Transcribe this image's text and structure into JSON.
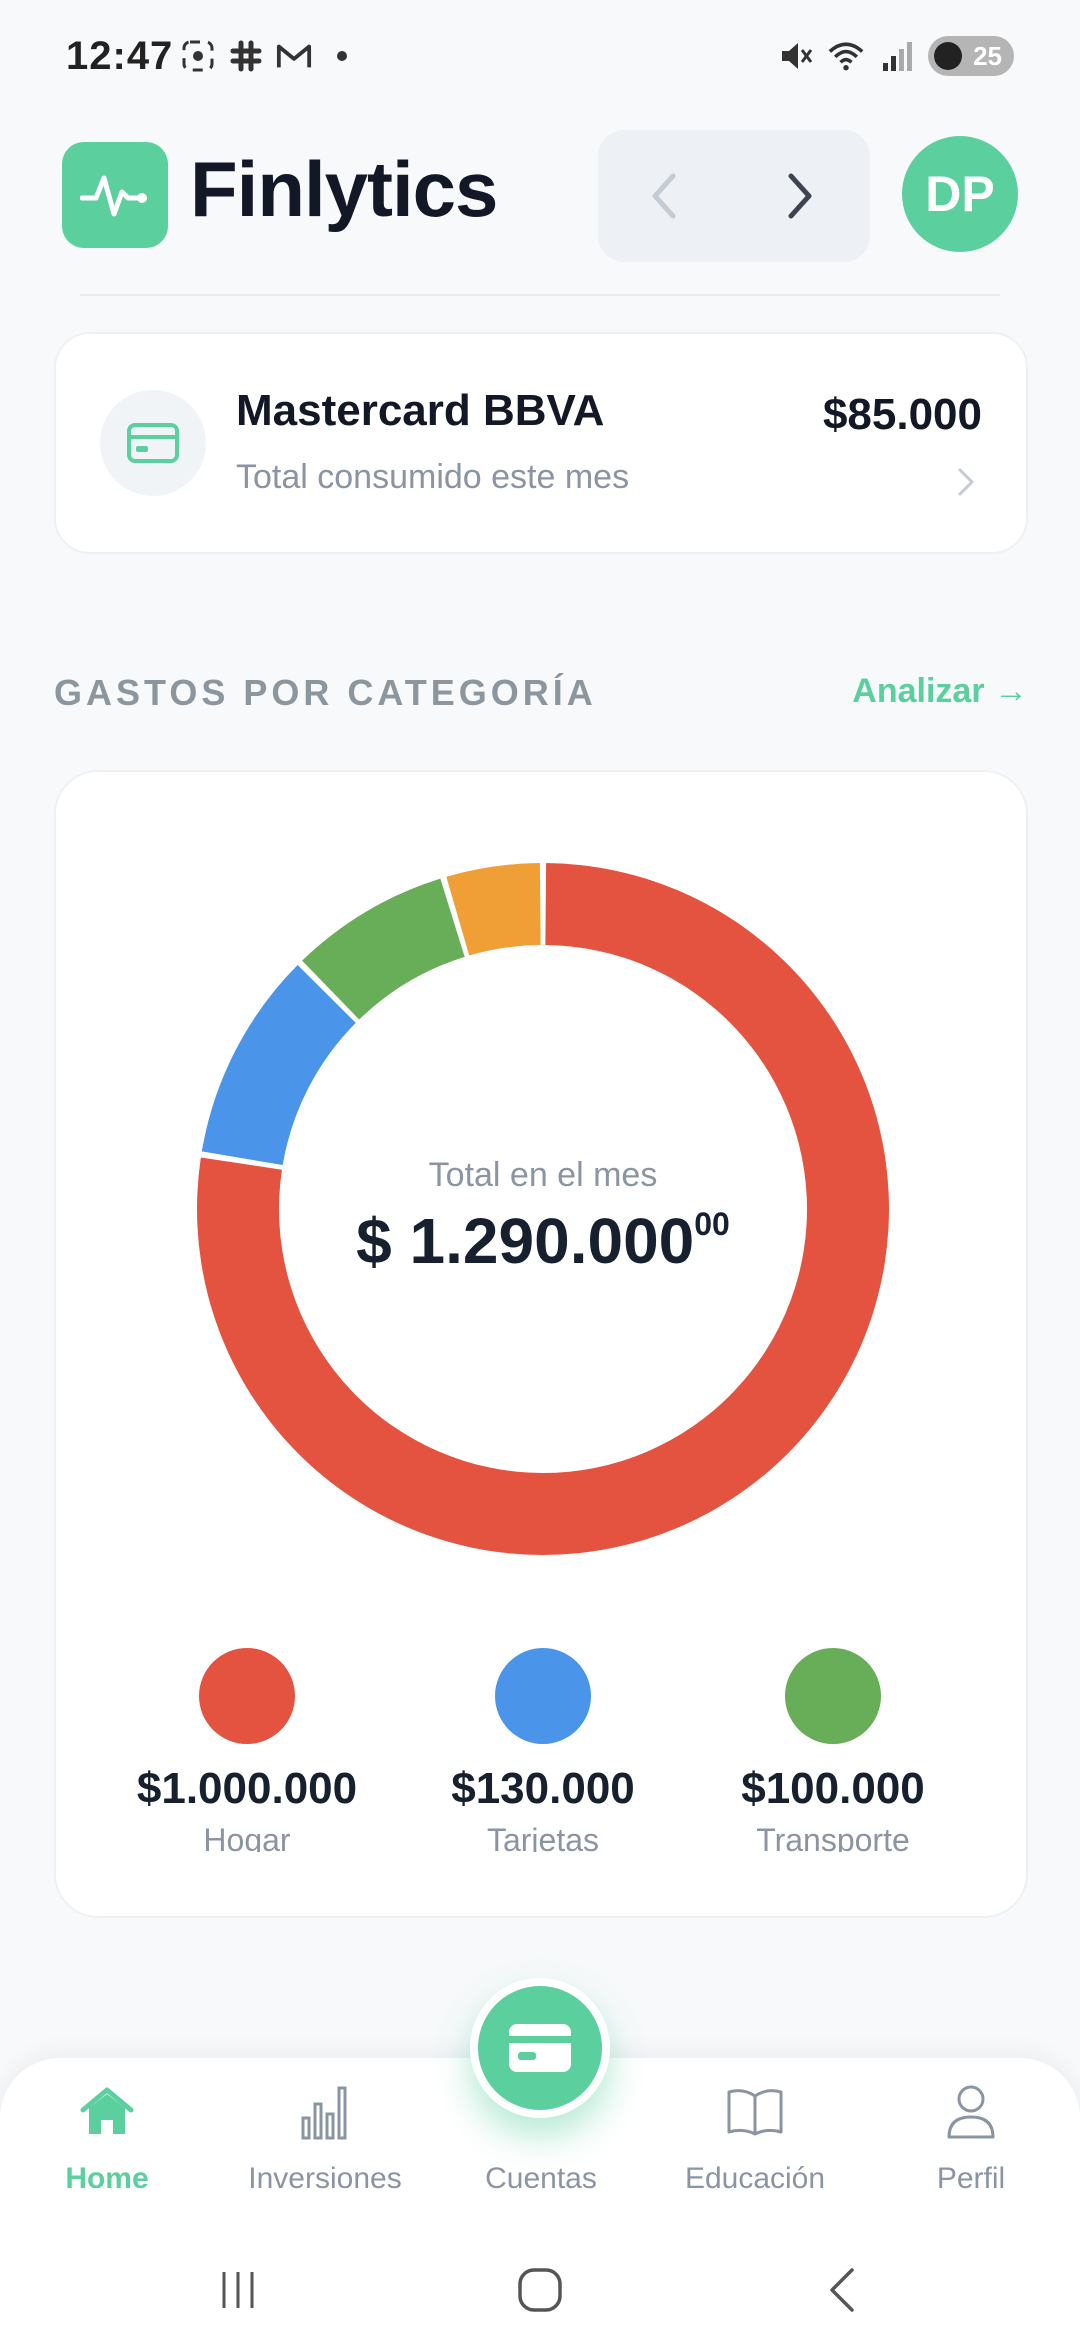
{
  "status_bar": {
    "time": "12:47",
    "battery": "25",
    "wifi_label": "5"
  },
  "header": {
    "app_title": "Finlytics",
    "avatar_initials": "DP"
  },
  "card": {
    "title": "Mastercard BBVA",
    "subtitle": "Total consumido este mes",
    "amount": "$85.000"
  },
  "section": {
    "title": "GASTOS POR CATEGORÍA",
    "link": "Analizar →"
  },
  "chart_data": {
    "type": "pie",
    "center_label": "Total en el mes",
    "center_value": "$ 1.290.000",
    "center_decimals": "00",
    "total": 1290000,
    "slices": [
      {
        "name": "Hogar",
        "value": 1000000,
        "color": "#e35340"
      },
      {
        "name": "Tarjetas",
        "value": 130000,
        "color": "#4a94ea"
      },
      {
        "name": "Transporte",
        "value": 100000,
        "color": "#68ae58"
      },
      {
        "name": "",
        "value": 60000,
        "color": "#f09e36"
      }
    ]
  },
  "legend": [
    {
      "value": "$1.000.000",
      "name": "Hogar",
      "color": "#e35340"
    },
    {
      "value": "$130.000",
      "name": "Tarjetas",
      "color": "#4a94ea"
    },
    {
      "value": "$100.000",
      "name": "Transporte",
      "color": "#68ae58"
    }
  ],
  "bottom_nav": {
    "tabs": [
      {
        "label": "Home",
        "icon": "home-icon",
        "active": true
      },
      {
        "label": "Inversiones",
        "icon": "bar-chart-icon"
      },
      {
        "label": "Cuentas",
        "icon": "card-icon"
      },
      {
        "label": "Educación",
        "icon": "book-icon"
      },
      {
        "label": "Perfil",
        "icon": "user-icon"
      }
    ]
  },
  "colors": {
    "accent": "#5ccf9f"
  }
}
